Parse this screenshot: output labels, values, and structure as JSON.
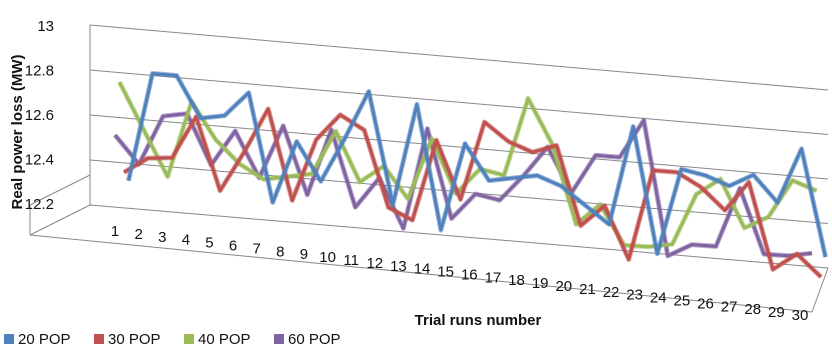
{
  "chart_data": {
    "type": "line",
    "subtype": "3d-line",
    "xlabel": "Trial runs number",
    "ylabel": "Real power loss (MW)",
    "ylim": [
      12.2,
      13
    ],
    "yticks": [
      "12.2",
      "12.4",
      "12.6",
      "12.8",
      "13"
    ],
    "grid": true,
    "legend_position": "bottom-left",
    "categories": [
      "1",
      "2",
      "3",
      "4",
      "5",
      "6",
      "7",
      "8",
      "9",
      "10",
      "11",
      "12",
      "13",
      "14",
      "15",
      "16",
      "17",
      "18",
      "19",
      "20",
      "21",
      "22",
      "23",
      "24",
      "25",
      "26",
      "27",
      "28",
      "29",
      "30"
    ],
    "series": [
      {
        "name": "20 POP",
        "color": "#4F81BD",
        "values": [
          12.32,
          12.8,
          12.8,
          12.62,
          12.64,
          12.75,
          12.27,
          12.55,
          12.38,
          12.58,
          12.8,
          12.3,
          12.76,
          12.2,
          12.6,
          12.44,
          12.46,
          12.48,
          12.44,
          12.36,
          12.28,
          12.74,
          12.16,
          12.56,
          12.54,
          12.5,
          12.56,
          12.44,
          12.7,
          12.2
        ]
      },
      {
        "name": "30 POP",
        "color": "#C0504D",
        "values": [
          12.37,
          12.44,
          12.45,
          12.64,
          12.32,
          12.5,
          12.7,
          12.3,
          12.58,
          12.7,
          12.64,
          12.3,
          12.25,
          12.62,
          12.36,
          12.72,
          12.64,
          12.6,
          12.64,
          12.28,
          12.38,
          12.14,
          12.56,
          12.56,
          12.5,
          12.4,
          12.54,
          12.14,
          12.22,
          12.12
        ]
      },
      {
        "name": "40 POP",
        "color": "#9BBB59",
        "values": [
          12.78,
          12.58,
          12.38,
          12.72,
          12.56,
          12.46,
          12.4,
          12.42,
          12.44,
          12.64,
          12.42,
          12.5,
          12.36,
          12.64,
          12.4,
          12.52,
          12.5,
          12.86,
          12.66,
          12.3,
          12.4,
          12.22,
          12.22,
          12.24,
          12.48,
          12.56,
          12.34,
          12.4,
          12.58,
          12.54
        ]
      },
      {
        "name": "60 POP",
        "color": "#8064A2",
        "values": [
          12.56,
          12.44,
          12.66,
          12.68,
          12.46,
          12.62,
          12.42,
          12.66,
          12.36,
          12.66,
          12.32,
          12.46,
          12.24,
          12.7,
          12.3,
          12.42,
          12.4,
          12.52,
          12.66,
          12.46,
          12.64,
          12.64,
          12.82,
          12.2,
          12.26,
          12.26,
          12.54,
          12.24,
          12.24,
          12.26
        ]
      }
    ]
  }
}
